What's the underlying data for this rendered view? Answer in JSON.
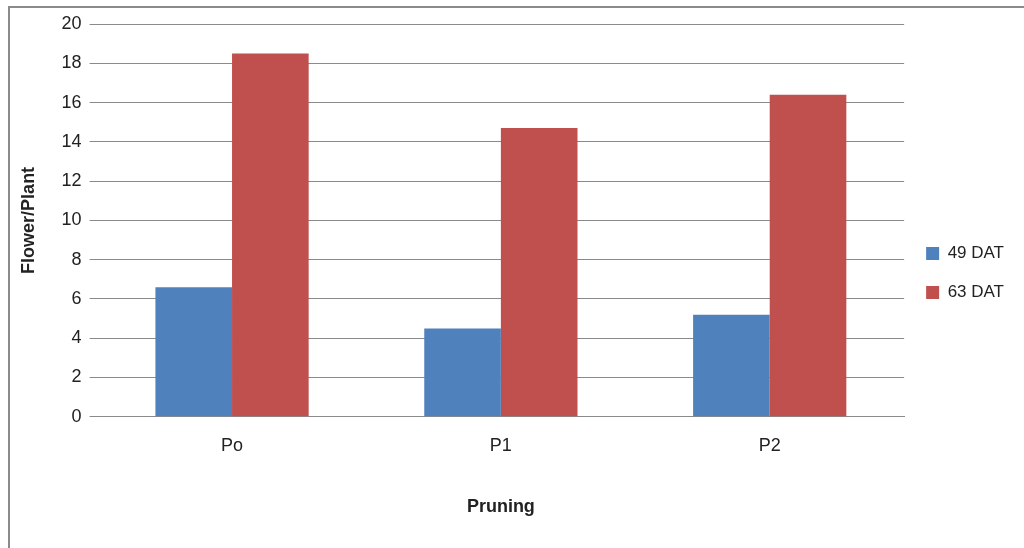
{
  "chart_data": {
    "type": "bar",
    "xlabel": "Pruning",
    "ylabel": "Flower/Plant",
    "categories": [
      "Po",
      "P1",
      "P2"
    ],
    "series": [
      {
        "name": "49 DAT",
        "color": "#4f81bd",
        "values": [
          6.6,
          4.5,
          5.2
        ]
      },
      {
        "name": "63 DAT",
        "color": "#c0504d",
        "values": [
          18.5,
          14.7,
          16.4
        ]
      }
    ],
    "ylim": [
      0,
      20
    ],
    "yticks": [
      0,
      2,
      4,
      6,
      8,
      10,
      12,
      14,
      16,
      18,
      20
    ],
    "grid": "y",
    "legend": "right"
  }
}
